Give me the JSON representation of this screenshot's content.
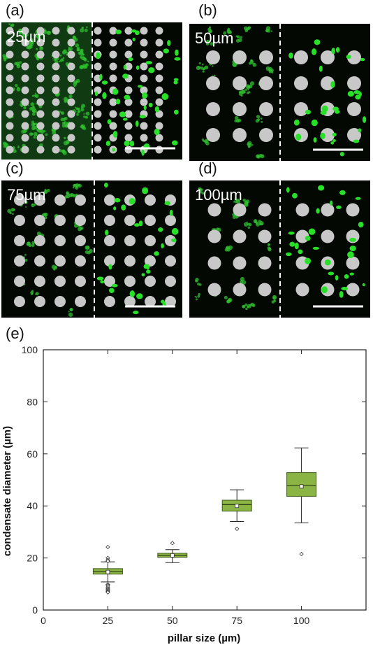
{
  "panels": [
    {
      "letter": "(a)",
      "size_label": "25µm",
      "pillar_um": 25
    },
    {
      "letter": "(b)",
      "size_label": "50µm",
      "pillar_um": 50
    },
    {
      "letter": "(c)",
      "size_label": "75µm",
      "pillar_um": 75
    },
    {
      "letter": "(d)",
      "size_label": "100µm",
      "pillar_um": 100
    }
  ],
  "chart_letter": "(e)",
  "colors": {
    "box_fill": "#8ab443",
    "box_edge": "#3e5a18",
    "droplet": "#28e028",
    "pillar": "#c8c8c8",
    "background_dark": "#030803"
  },
  "chart_data": {
    "type": "box",
    "xlabel": "pillar size (µm)",
    "ylabel": "condensate diameter (µm)",
    "xlim": [
      0,
      125
    ],
    "ylim": [
      0,
      100
    ],
    "xticks": [
      0,
      25,
      50,
      75,
      100
    ],
    "yticks": [
      0,
      20,
      40,
      60,
      80,
      100
    ],
    "grid": false,
    "boxes": [
      {
        "x": 25,
        "q1": 13.8,
        "median": 14.8,
        "q3": 15.9,
        "mean": 14.6,
        "whisker_low": 10.8,
        "whisker_high": 18.5,
        "outliers": [
          24.2,
          20.0,
          19.2,
          18.8,
          9.8,
          9.4,
          8.8,
          8.3,
          7.9,
          7.5,
          7.1,
          6.8
        ]
      },
      {
        "x": 50,
        "q1": 20.3,
        "median": 21.0,
        "q3": 21.8,
        "mean": 21.0,
        "whisker_low": 18.2,
        "whisker_high": 23.2,
        "outliers": [
          25.7
        ]
      },
      {
        "x": 75,
        "q1": 38.0,
        "median": 40.5,
        "q3": 42.2,
        "mean": 40.0,
        "whisker_low": 34.0,
        "whisker_high": 46.2,
        "outliers": [
          31.2
        ]
      },
      {
        "x": 100,
        "q1": 43.7,
        "median": 47.8,
        "q3": 52.8,
        "mean": 47.5,
        "whisker_low": 33.5,
        "whisker_high": 62.3,
        "outliers": [
          21.5
        ]
      }
    ]
  }
}
